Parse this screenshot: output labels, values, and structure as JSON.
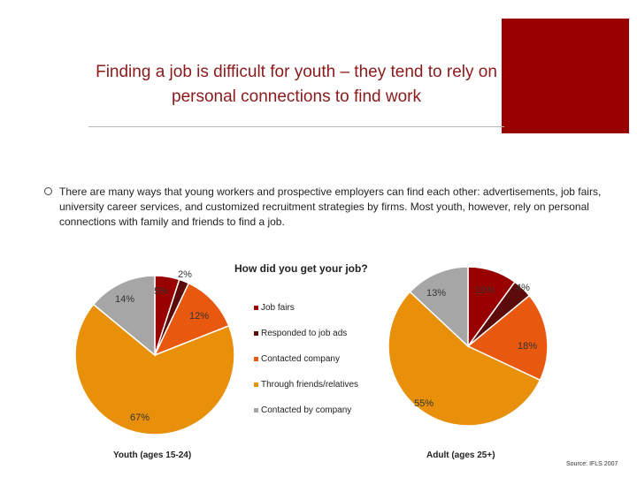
{
  "slide": {
    "title": "Finding a job is difficult for youth – they tend to rely on personal connections to find work",
    "bullet": "There are many ways that young workers and prospective employers can find each other: advertisements, job fairs, university career services, and customized recruitment strategies by firms. Most youth, however, rely on personal connections with family and friends to find a job.",
    "source": "Source: IFLS 2007",
    "accent_color": "#990000"
  },
  "chart_data": {
    "type": "pie",
    "title": "How did you get your job?",
    "legend_position": "center",
    "categories": [
      "Job fairs",
      "Responded to job ads",
      "Contacted company",
      "Through friends/relatives",
      "Contacted by company"
    ],
    "colors": [
      "#990000",
      "#5c0a0a",
      "#e8580f",
      "#e8900a",
      "#a6a6a6"
    ],
    "series": [
      {
        "name": "Youth (ages 15-24)",
        "values": [
          5,
          2,
          12,
          67,
          14
        ],
        "labels": [
          "5%",
          "2%",
          "12%",
          "67%",
          "14%"
        ]
      },
      {
        "name": "Adult (ages 25+)",
        "values": [
          10,
          4,
          18,
          55,
          13
        ],
        "labels": [
          "10%",
          "4%",
          "18%",
          "55%",
          "13%"
        ]
      }
    ]
  }
}
